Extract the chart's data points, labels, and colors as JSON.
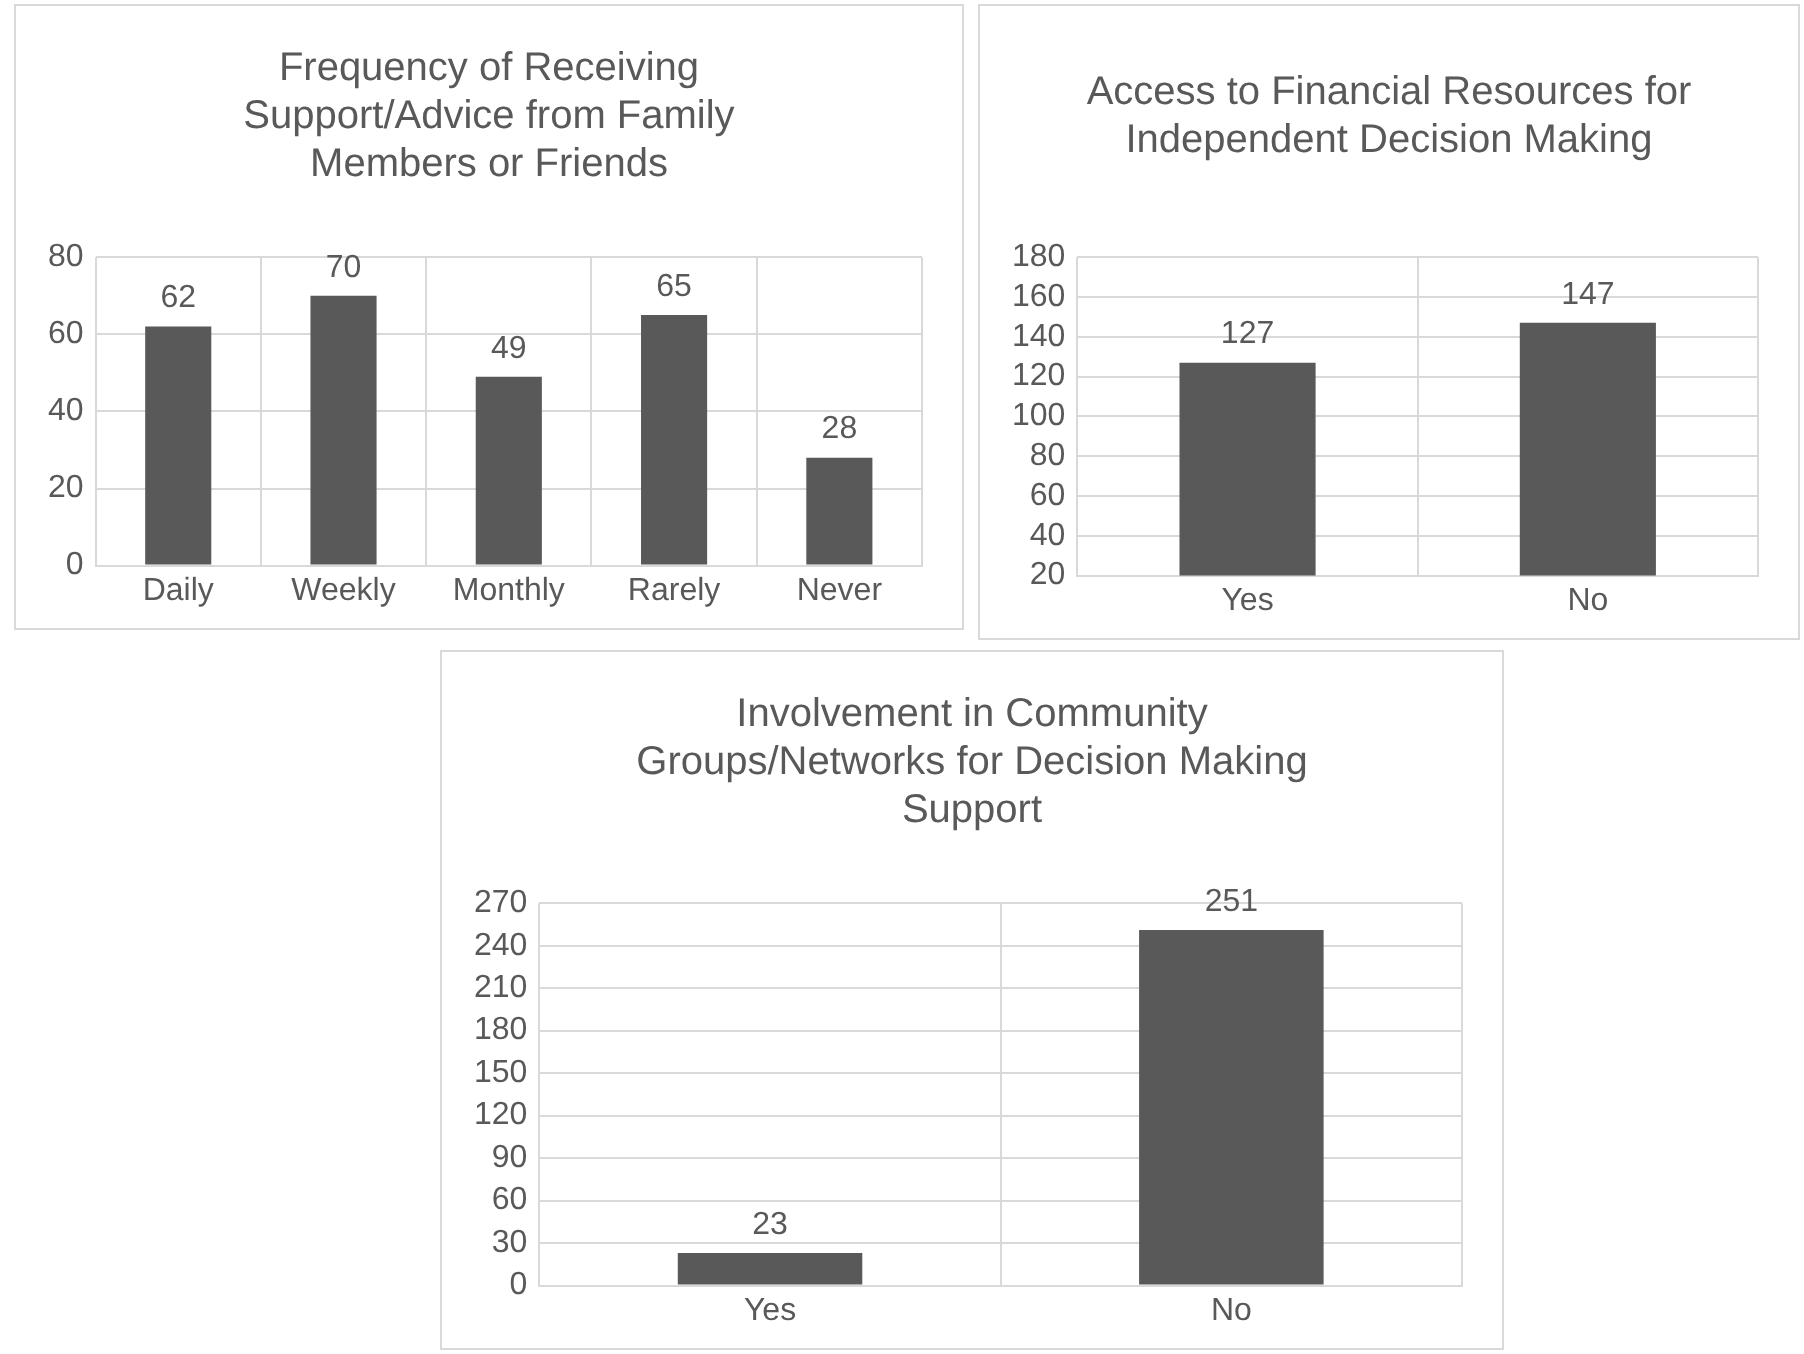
{
  "chart_data": [
    {
      "type": "bar",
      "title": "Frequency of Receiving Support/Advice from Family Members or Friends",
      "categories": [
        "Daily",
        "Weekly",
        "Monthly",
        "Rarely",
        "Never"
      ],
      "values": [
        62,
        70,
        49,
        65,
        28
      ],
      "color": "#595959",
      "ylim": [
        0,
        80
      ],
      "yticks": [
        0,
        20,
        40,
        60,
        80
      ],
      "grid": true,
      "data_labels": true
    },
    {
      "type": "bar",
      "title": "Access to Financial Resources for Independent Decision Making",
      "categories": [
        "Yes",
        "No"
      ],
      "values": [
        127,
        147
      ],
      "color": "#595959",
      "ylim": [
        20,
        180
      ],
      "yticks": [
        20,
        40,
        60,
        80,
        100,
        120,
        140,
        160,
        180
      ],
      "grid": true,
      "data_labels": true
    },
    {
      "type": "bar",
      "title": "Involvement in Community Groups/Networks for Decision Making Support",
      "categories": [
        "Yes",
        "No"
      ],
      "values": [
        23,
        251
      ],
      "color": "#595959",
      "ylim": [
        0,
        270
      ],
      "yticks": [
        0,
        30,
        60,
        90,
        120,
        150,
        180,
        210,
        240,
        270
      ],
      "grid": true,
      "data_labels": true
    }
  ]
}
